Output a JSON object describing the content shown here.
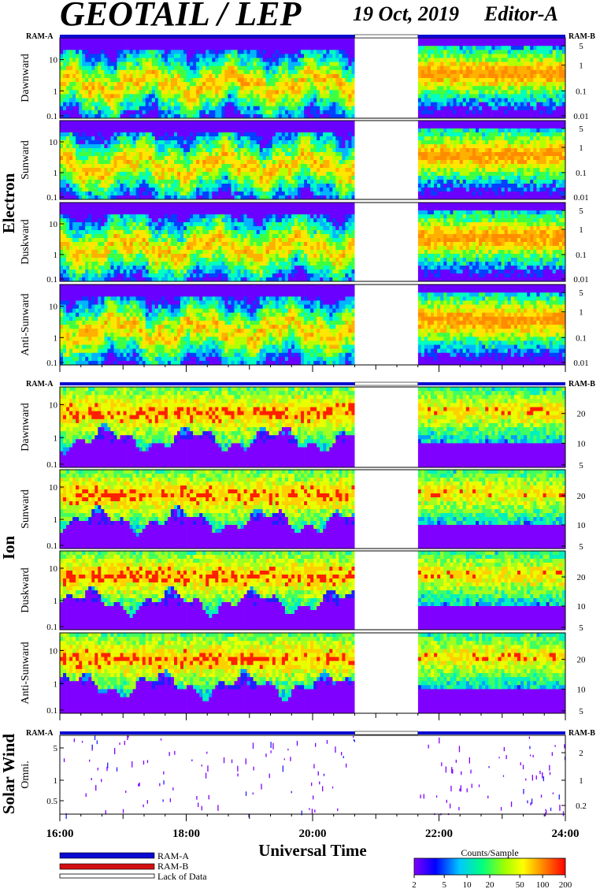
{
  "header": {
    "title": "GEOTAIL / LEP",
    "date": "19 Oct, 2019",
    "editor": "Editor-A"
  },
  "chart_data": {
    "type": "heatmap",
    "xlabel": "Universal Time",
    "x_ticks": [
      "16:00",
      "18:00",
      "20:00",
      "22:00",
      "24:00"
    ],
    "xlim": [
      "16:00",
      "24:00"
    ],
    "data_gap": [
      "20:40",
      "21:40"
    ],
    "ram_labels": {
      "left": "RAM-A",
      "right": "RAM-B"
    },
    "groups": [
      {
        "name": "Electron",
        "panels": [
          {
            "ylabel": "Dawnward",
            "left_ticks": [
              "10",
              "1",
              "0.1"
            ],
            "right_ticks": [
              "5",
              "1",
              "0.1",
              "0.01"
            ]
          },
          {
            "ylabel": "Sunward",
            "left_ticks": [
              "10",
              "1",
              "0.1"
            ],
            "right_ticks": [
              "5",
              "1",
              "0.1",
              "0.01"
            ]
          },
          {
            "ylabel": "Duskward",
            "left_ticks": [
              "10",
              "1",
              "0.1"
            ],
            "right_ticks": [
              "5",
              "1",
              "0.1",
              "0.01"
            ]
          },
          {
            "ylabel": "Anti-Sunward",
            "left_ticks": [
              "10",
              "1",
              "0.1"
            ],
            "right_ticks": [
              "5",
              "1",
              "0.1",
              "0.01"
            ]
          }
        ]
      },
      {
        "name": "Ion",
        "panels": [
          {
            "ylabel": "Dawnward",
            "left_ticks": [
              "10",
              "1",
              "0.1"
            ],
            "right_ticks": [
              "20",
              "10",
              "5"
            ]
          },
          {
            "ylabel": "Sunward",
            "left_ticks": [
              "10",
              "1",
              "0.1"
            ],
            "right_ticks": [
              "20",
              "10",
              "5"
            ]
          },
          {
            "ylabel": "Duskward",
            "left_ticks": [
              "10",
              "1",
              "0.1"
            ],
            "right_ticks": [
              "20",
              "10",
              "5"
            ]
          },
          {
            "ylabel": "Anti-Sunward",
            "left_ticks": [
              "10",
              "1",
              "0.1"
            ],
            "right_ticks": [
              "20",
              "10",
              "5"
            ]
          }
        ]
      },
      {
        "name": "Solar Wind",
        "panels": [
          {
            "ylabel": "Omni.",
            "left_ticks": [
              "5",
              "1",
              "0.5"
            ],
            "right_ticks": [
              "2",
              "1",
              "0.2"
            ]
          }
        ]
      }
    ],
    "legend": [
      {
        "label": "RAM-A",
        "color": "#0a0ad0"
      },
      {
        "label": "RAM-B",
        "color": "#d01010"
      },
      {
        "label": "Lack of Data",
        "color": "#ffffff"
      }
    ],
    "colorbar": {
      "title": "Counts/Sample",
      "ticks": [
        "2",
        "5",
        "10",
        "20",
        "50",
        "100",
        "200"
      ],
      "colors": [
        "#8000ff",
        "#0000ff",
        "#00c8ff",
        "#00ff80",
        "#80ff00",
        "#ffff00",
        "#ff8000",
        "#ff0000"
      ]
    }
  }
}
